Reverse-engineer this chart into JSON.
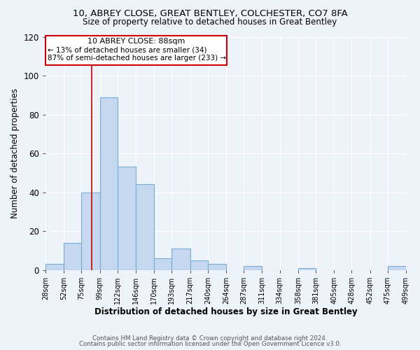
{
  "title1": "10, ABREY CLOSE, GREAT BENTLEY, COLCHESTER, CO7 8FA",
  "title2": "Size of property relative to detached houses in Great Bentley",
  "xlabel": "Distribution of detached houses by size in Great Bentley",
  "ylabel": "Number of detached properties",
  "footer1": "Contains HM Land Registry data © Crown copyright and database right 2024.",
  "footer2": "Contains public sector information licensed under the Open Government Licence v3.0.",
  "annotation_title": "10 ABREY CLOSE: 88sqm",
  "annotation_line2": "← 13% of detached houses are smaller (34)",
  "annotation_line3": "87% of semi-detached houses are larger (233) →",
  "bar_edges": [
    28,
    52,
    75,
    99,
    122,
    146,
    170,
    193,
    217,
    240,
    264,
    287,
    311,
    334,
    358,
    381,
    405,
    428,
    452,
    475,
    499
  ],
  "bar_heights": [
    3,
    14,
    40,
    89,
    53,
    44,
    6,
    11,
    5,
    3,
    0,
    2,
    0,
    0,
    1,
    0,
    0,
    0,
    0,
    2
  ],
  "bar_color": "#c5d8ef",
  "bar_edgecolor": "#7aadd4",
  "vline_x": 88,
  "vline_color": "#cc0000",
  "ylim": [
    0,
    120
  ],
  "yticks": [
    0,
    20,
    40,
    60,
    80,
    100,
    120
  ],
  "tick_labels": [
    "28sqm",
    "52sqm",
    "75sqm",
    "99sqm",
    "122sqm",
    "146sqm",
    "170sqm",
    "193sqm",
    "217sqm",
    "240sqm",
    "264sqm",
    "287sqm",
    "311sqm",
    "334sqm",
    "358sqm",
    "381sqm",
    "405sqm",
    "428sqm",
    "452sqm",
    "475sqm",
    "499sqm"
  ],
  "annotation_box_color": "#cc0000",
  "background_color": "#eef2f9"
}
